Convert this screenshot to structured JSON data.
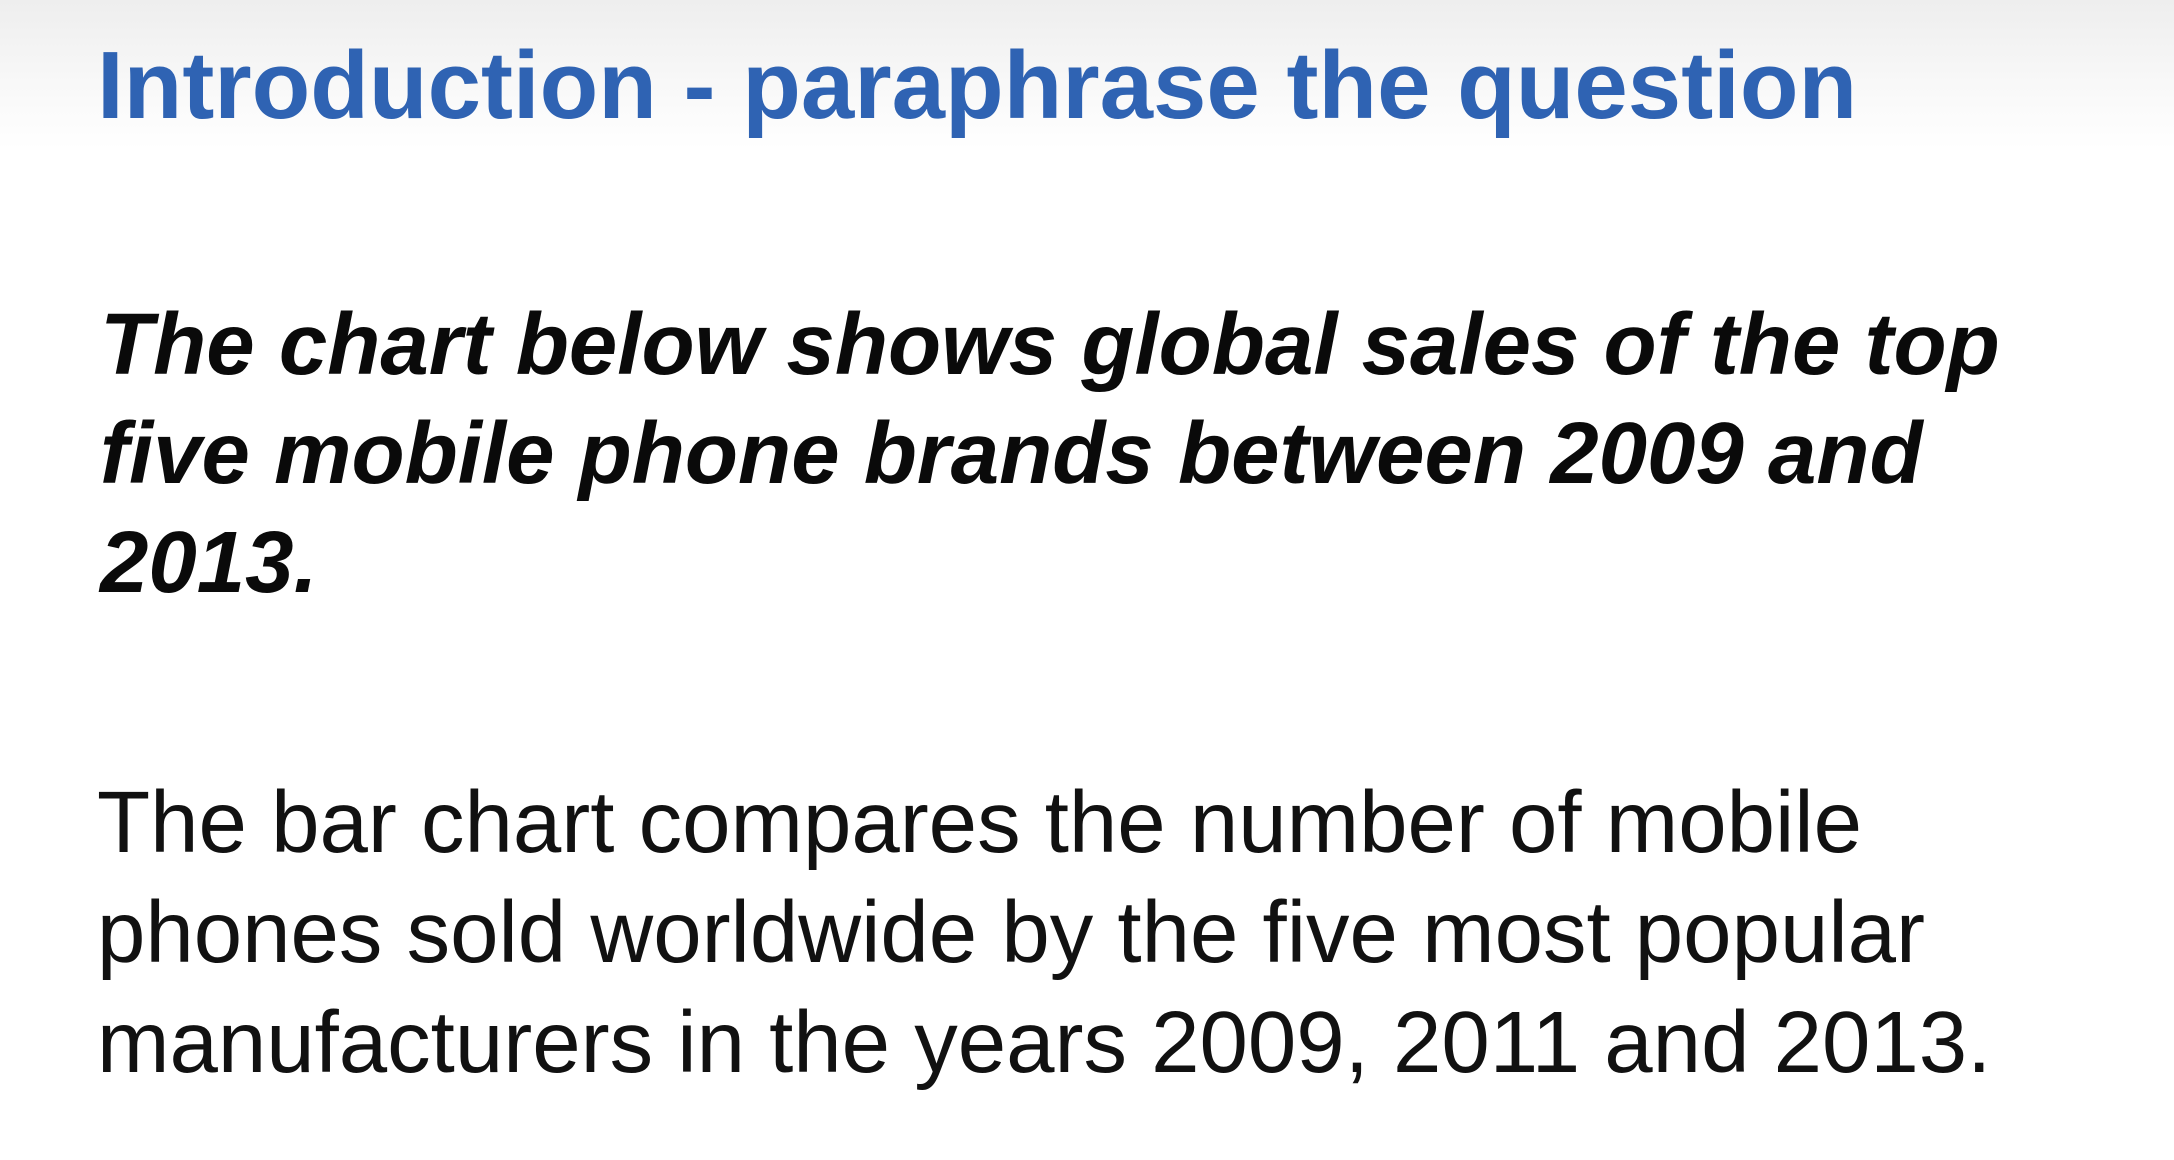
{
  "slide": {
    "title": "Introduction - paraphrase the question",
    "question": "The chart below shows global sales of the top five mobile phone brands between 2009 and 2013.",
    "answer": "The bar chart compares the number of mobile phones sold worldwide by the five most popular manufacturers in the years 2009, 2011 and 2013."
  },
  "colors": {
    "title": "#2f63b3",
    "text": "#111111",
    "background": "#ffffff"
  }
}
